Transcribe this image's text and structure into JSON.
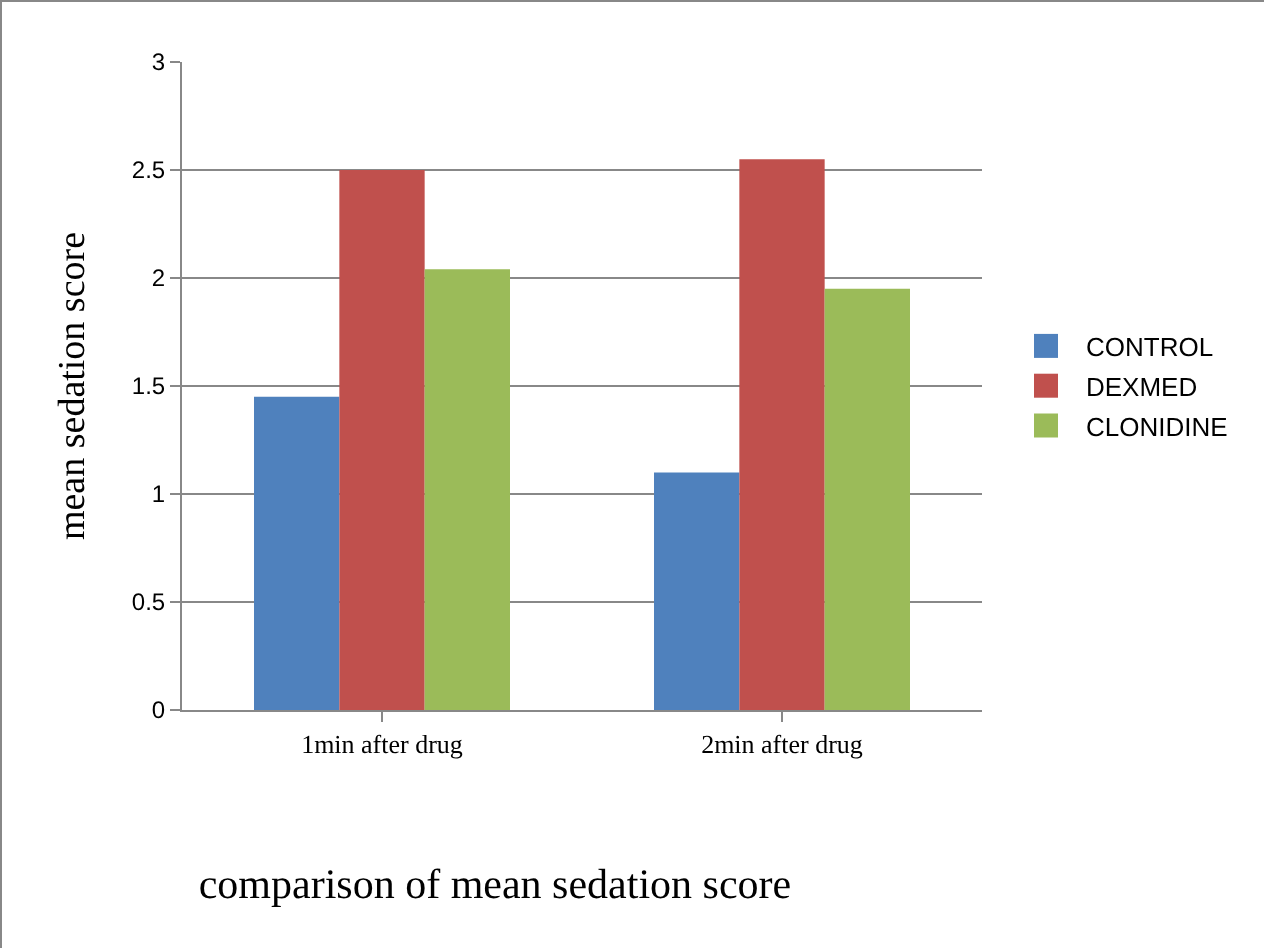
{
  "chart_data": {
    "type": "bar",
    "title": "comparison of mean sedation score",
    "ylabel": "mean sedation score",
    "categories": [
      "1min after drug",
      "2min after drug"
    ],
    "series": [
      {
        "name": "CONTROL",
        "color": "#4f81bd",
        "values": [
          1.45,
          1.1
        ]
      },
      {
        "name": "DEXMED",
        "color": "#c0504d",
        "values": [
          2.5,
          2.55
        ]
      },
      {
        "name": "CLONIDINE",
        "color": "#9bbb59",
        "values": [
          2.04,
          1.95
        ]
      }
    ],
    "ylim": [
      0,
      3
    ],
    "yticks": [
      0,
      0.5,
      1,
      1.5,
      2,
      2.5,
      3
    ],
    "grid": "y",
    "legend": "right"
  }
}
